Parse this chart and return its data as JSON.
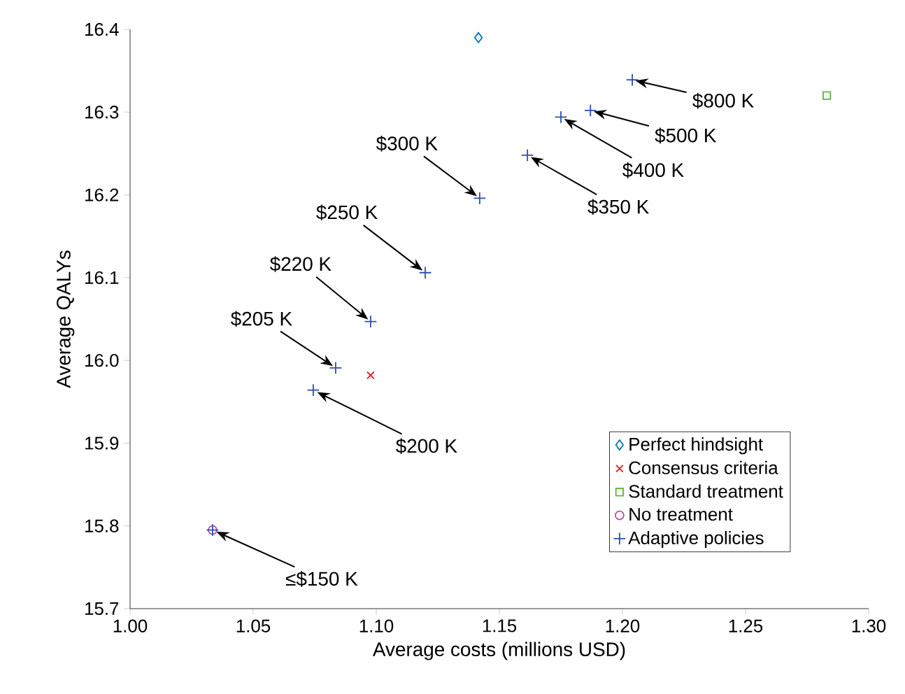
{
  "chart_data": {
    "type": "scatter",
    "xlabel": "Average costs (millions USD)",
    "ylabel": "Average QALYs",
    "xlim": [
      1.0,
      1.3
    ],
    "ylim": [
      15.7,
      16.4
    ],
    "xticks": [
      {
        "value": 1.0,
        "label": "1.00"
      },
      {
        "value": 1.05,
        "label": "1.05"
      },
      {
        "value": 1.1,
        "label": "1.10"
      },
      {
        "value": 1.15,
        "label": "1.15"
      },
      {
        "value": 1.2,
        "label": "1.20"
      },
      {
        "value": 1.25,
        "label": "1.25"
      },
      {
        "value": 1.3,
        "label": "1.30"
      }
    ],
    "yticks": [
      15.7,
      15.8,
      15.9,
      {
        "value": 16.0,
        "label": "16.0"
      },
      16.1,
      16.2,
      16.3,
      16.4
    ],
    "grid": false,
    "legend": "bottom right",
    "series": [
      {
        "name": "Perfect hindsight",
        "color": "#0072bd",
        "marker": "diamond",
        "x": [
          1.1415
        ],
        "values": [
          16.39
        ]
      },
      {
        "name": "Consensus criteria",
        "color": "#e8191f",
        "marker": "cross",
        "x": [
          1.0977
        ],
        "values": [
          15.982
        ]
      },
      {
        "name": "Standard treatment",
        "color": "#5bb53a",
        "marker": "square",
        "x": [
          1.283
        ],
        "values": [
          16.32
        ]
      },
      {
        "name": "No treatment",
        "color": "#b44ca6",
        "marker": "circle",
        "x": [
          1.0335
        ],
        "values": [
          15.795
        ]
      },
      {
        "name": "Adaptive policies",
        "color": "#2a4fb0",
        "marker": "plus",
        "x": [
          1.0335,
          1.0744,
          1.0835,
          1.0977,
          1.1199,
          1.142,
          1.1614,
          1.175,
          1.187,
          1.204
        ],
        "values": [
          15.795,
          15.964,
          15.991,
          16.047,
          16.106,
          16.196,
          16.248,
          16.294,
          16.302,
          16.339
        ]
      }
    ],
    "annotations": [
      {
        "text": "≤$150 K",
        "x": 1.0335,
        "y": 15.795
      },
      {
        "text": "$200 K",
        "x": 1.0744,
        "y": 15.964
      },
      {
        "text": "$205 K",
        "x": 1.0835,
        "y": 15.991
      },
      {
        "text": "$220 K",
        "x": 1.0977,
        "y": 16.047
      },
      {
        "text": "$250 K",
        "x": 1.1199,
        "y": 16.106
      },
      {
        "text": "$300 K",
        "x": 1.142,
        "y": 16.196
      },
      {
        "text": "$350 K",
        "x": 1.1614,
        "y": 16.248
      },
      {
        "text": "$400 K",
        "x": 1.175,
        "y": 16.294
      },
      {
        "text": "$500 K",
        "x": 1.187,
        "y": 16.302
      },
      {
        "text": "$800 K",
        "x": 1.204,
        "y": 16.339
      }
    ]
  }
}
